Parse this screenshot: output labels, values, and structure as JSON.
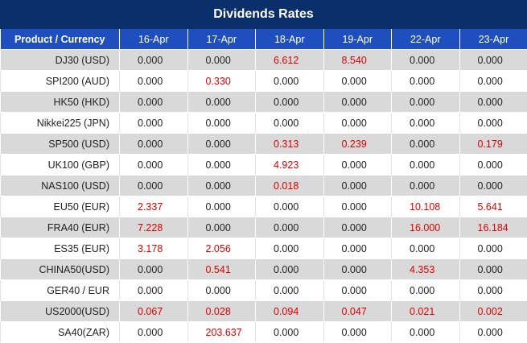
{
  "title": "Dividends Rates",
  "header": {
    "product_label": "Product / Currency",
    "dates": [
      "16-Apr",
      "17-Apr",
      "18-Apr",
      "19-Apr",
      "22-Apr",
      "23-Apr"
    ]
  },
  "colors": {
    "title_bg": "#0a2f6b",
    "header_bg": "#1f4fbf",
    "highlight": "#e00000",
    "stripe": "#d9d9d9"
  },
  "rows": [
    {
      "product": "DJ30 (USD)",
      "values": [
        "0.000",
        "0.000",
        "6.612",
        "8.540",
        "0.000",
        "0.000"
      ]
    },
    {
      "product": "SPI200 (AUD)",
      "values": [
        "0.000",
        "0.330",
        "0.000",
        "0.000",
        "0.000",
        "0.000"
      ]
    },
    {
      "product": "HK50 (HKD)",
      "values": [
        "0.000",
        "0.000",
        "0.000",
        "0.000",
        "0.000",
        "0.000"
      ]
    },
    {
      "product": "Nikkei225 (JPN)",
      "values": [
        "0.000",
        "0.000",
        "0.000",
        "0.000",
        "0.000",
        "0.000"
      ]
    },
    {
      "product": "SP500 (USD)",
      "values": [
        "0.000",
        "0.000",
        "0.313",
        "0.239",
        "0.000",
        "0.179"
      ]
    },
    {
      "product": "UK100 (GBP)",
      "values": [
        "0.000",
        "0.000",
        "4.923",
        "0.000",
        "0.000",
        "0.000"
      ]
    },
    {
      "product": "NAS100 (USD)",
      "values": [
        "0.000",
        "0.000",
        "0.018",
        "0.000",
        "0.000",
        "0.000"
      ]
    },
    {
      "product": "EU50 (EUR)",
      "values": [
        "2.337",
        "0.000",
        "0.000",
        "0.000",
        "10.108",
        "5.641"
      ]
    },
    {
      "product": "FRA40 (EUR)",
      "values": [
        "7.228",
        "0.000",
        "0.000",
        "0.000",
        "16.000",
        "16.184"
      ]
    },
    {
      "product": "ES35 (EUR)",
      "values": [
        "3.178",
        "2.056",
        "0.000",
        "0.000",
        "0.000",
        "0.000"
      ]
    },
    {
      "product": "CHINA50(USD)",
      "values": [
        "0.000",
        "0.541",
        "0.000",
        "0.000",
        "4.353",
        "0.000"
      ]
    },
    {
      "product": "GER40 / EUR",
      "values": [
        "0.000",
        "0.000",
        "0.000",
        "0.000",
        "0.000",
        "0.000"
      ]
    },
    {
      "product": "US2000(USD)",
      "values": [
        "0.067",
        "0.028",
        "0.094",
        "0.047",
        "0.021",
        "0.002"
      ]
    },
    {
      "product": "SA40(ZAR)",
      "values": [
        "0.000",
        "203.637",
        "0.000",
        "0.000",
        "0.000",
        "0.000"
      ]
    }
  ]
}
